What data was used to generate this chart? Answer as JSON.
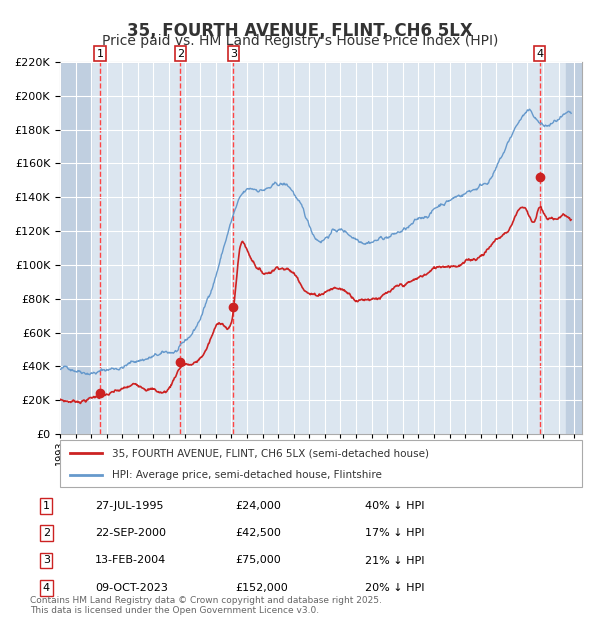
{
  "title": "35, FOURTH AVENUE, FLINT, CH6 5LX",
  "subtitle": "Price paid vs. HM Land Registry's House Price Index (HPI)",
  "title_fontsize": 12,
  "subtitle_fontsize": 10,
  "legend_line1": "35, FOURTH AVENUE, FLINT, CH6 5LX (semi-detached house)",
  "legend_line2": "HPI: Average price, semi-detached house, Flintshire",
  "hpi_color": "#6699cc",
  "price_color": "#cc2222",
  "sale_marker_color": "#cc2222",
  "background_color": "#dce6f0",
  "hatch_color": "#c0cfe0",
  "grid_color": "#ffffff",
  "dashed_line_color": "#ff4444",
  "sales": [
    {
      "date_num": 1995.57,
      "price": 24000,
      "label": "1"
    },
    {
      "date_num": 2000.73,
      "price": 42500,
      "label": "2"
    },
    {
      "date_num": 2004.12,
      "price": 75000,
      "label": "3"
    },
    {
      "date_num": 2023.78,
      "price": 152000,
      "label": "4"
    }
  ],
  "table_rows": [
    {
      "num": "1",
      "date": "27-JUL-1995",
      "price": "£24,000",
      "pct": "40% ↓ HPI"
    },
    {
      "num": "2",
      "date": "22-SEP-2000",
      "price": "£42,500",
      "pct": "17% ↓ HPI"
    },
    {
      "num": "3",
      "date": "13-FEB-2004",
      "price": "£75,000",
      "pct": "21% ↓ HPI"
    },
    {
      "num": "4",
      "date": "09-OCT-2023",
      "price": "£152,000",
      "pct": "20% ↓ HPI"
    }
  ],
  "footer": "Contains HM Land Registry data © Crown copyright and database right 2025.\nThis data is licensed under the Open Government Licence v3.0.",
  "ylim": [
    0,
    220000
  ],
  "yticks": [
    0,
    20000,
    40000,
    60000,
    80000,
    100000,
    120000,
    140000,
    160000,
    180000,
    200000,
    220000
  ],
  "xlim_start": 1993.0,
  "xlim_end": 2026.5
}
